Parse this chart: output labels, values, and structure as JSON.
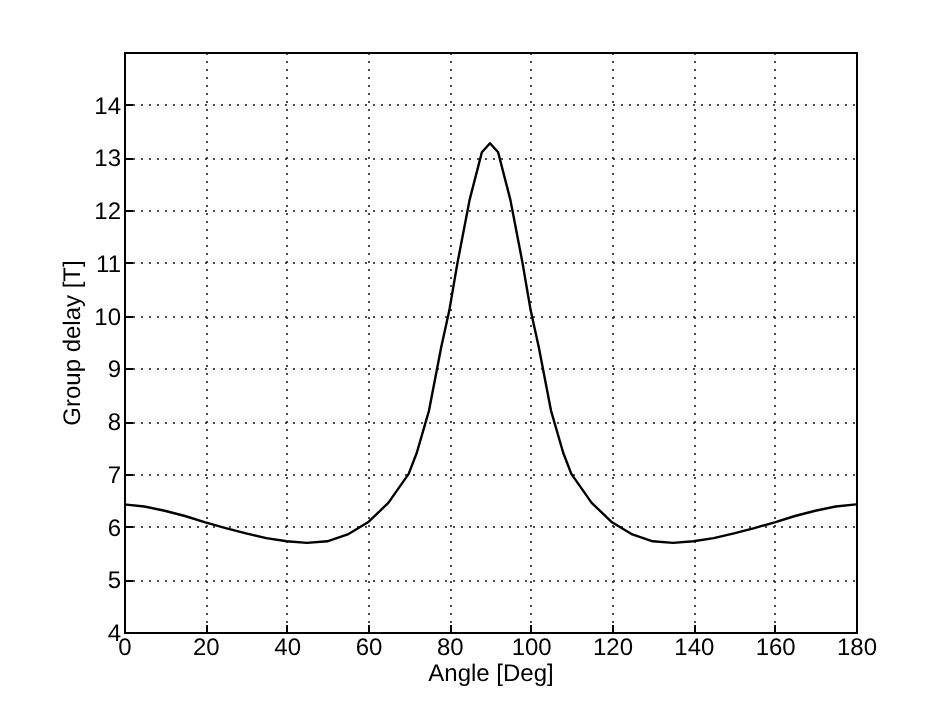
{
  "chart_data": {
    "type": "line",
    "xlabel": "Angle [Deg]",
    "ylabel": "Group delay [T]",
    "x": [
      0,
      5,
      10,
      15,
      20,
      25,
      30,
      35,
      40,
      45,
      50,
      55,
      60,
      65,
      70,
      72,
      75,
      78,
      80,
      82,
      85,
      88,
      90,
      92,
      95,
      98,
      100,
      102,
      105,
      108,
      110,
      115,
      120,
      125,
      130,
      135,
      140,
      145,
      150,
      155,
      160,
      165,
      170,
      175,
      180
    ],
    "series": [
      {
        "color": "#000000",
        "values": [
          6.42,
          6.38,
          6.3,
          6.2,
          6.08,
          5.97,
          5.87,
          5.78,
          5.72,
          5.69,
          5.72,
          5.85,
          6.08,
          6.45,
          7.0,
          7.4,
          8.2,
          9.4,
          10.1,
          11.0,
          12.2,
          13.1,
          13.27,
          13.1,
          12.2,
          11.0,
          10.1,
          9.4,
          8.2,
          7.4,
          7.0,
          6.45,
          6.08,
          5.85,
          5.72,
          5.69,
          5.72,
          5.78,
          5.87,
          5.97,
          6.08,
          6.2,
          6.3,
          6.38,
          6.42
        ]
      }
    ],
    "xlim": [
      0,
      180
    ],
    "xticks": [
      0,
      20,
      40,
      60,
      80,
      100,
      120,
      140,
      160,
      180
    ],
    "ylim": [
      4,
      15
    ],
    "yticks": [
      4,
      5,
      6,
      7,
      8,
      9,
      10,
      11,
      12,
      13,
      14
    ],
    "grid": true,
    "line_style": "solid",
    "marker": "none"
  }
}
